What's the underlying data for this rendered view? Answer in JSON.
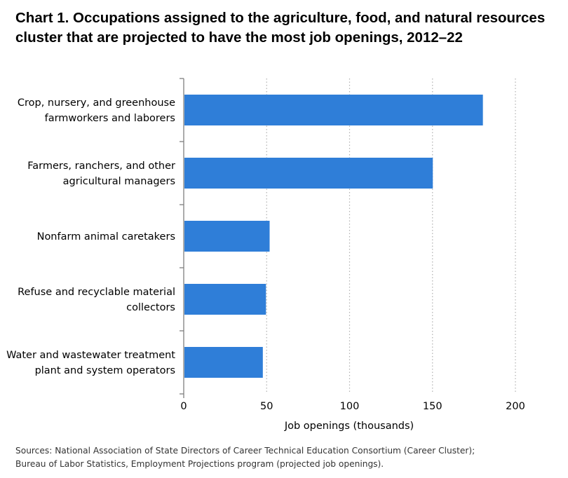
{
  "title": "Chart 1. Occupations assigned to the agriculture, food, and natural resources cluster that are projected to have the most job openings, 2012–22",
  "sources": [
    "Sources: National Association of State Directors of Career Technical Education Consortium (Career Cluster);",
    "Bureau of Labor Statistics, Employment Projections program (projected job openings)."
  ],
  "colors": {
    "bar": "#2f7ed8",
    "grid": "#b0b0b0",
    "axis": "#7f7f7f"
  },
  "chart_data": {
    "type": "bar",
    "orientation": "horizontal",
    "categories": [
      [
        "Crop, nursery, and greenhouse",
        "farmworkers and laborers"
      ],
      [
        "Farmers, ranchers, and other",
        "agricultural managers"
      ],
      [
        "Nonfarm animal caretakers"
      ],
      [
        "Refuse and recyclable material",
        "collectors"
      ],
      [
        "Water and wastewater treatment",
        "plant and system operators"
      ]
    ],
    "values": [
      180.4,
      150.2,
      51.8,
      49.6,
      47.7
    ],
    "xlabel": "Job openings (thousands)",
    "ylabel": "",
    "xlim": [
      0,
      200
    ],
    "xticks": [
      0,
      50,
      100,
      150,
      200
    ],
    "grid": "vertical dotted"
  }
}
